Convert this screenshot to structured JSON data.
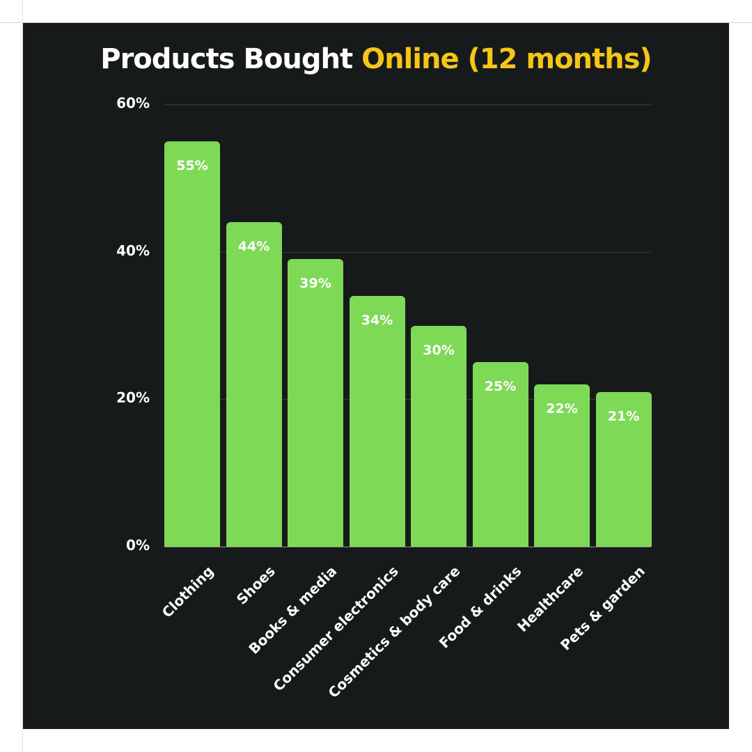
{
  "title": {
    "prefix": "Products Bought ",
    "accent": "Online (12 months)"
  },
  "colors": {
    "background": "#171a1b",
    "bar": "#7ed957",
    "title_accent": "#f5c518",
    "text": "#ffffff"
  },
  "y_axis": {
    "ticks": [
      "0%",
      "20%",
      "40%",
      "60%"
    ]
  },
  "bars": [
    {
      "label": "Clothing",
      "value": 55,
      "display": "55%"
    },
    {
      "label": "Shoes",
      "value": 44,
      "display": "44%"
    },
    {
      "label": "Books & media",
      "value": 39,
      "display": "39%"
    },
    {
      "label": "Consumer electronics",
      "value": 34,
      "display": "34%"
    },
    {
      "label": "Cosmetics & body care",
      "value": 30,
      "display": "30%"
    },
    {
      "label": "Food & drinks",
      "value": 25,
      "display": "25%"
    },
    {
      "label": "Healthcare",
      "value": 22,
      "display": "22%"
    },
    {
      "label": "Pets & garden",
      "value": 21,
      "display": "21%"
    }
  ],
  "chart_data": {
    "type": "bar",
    "title": "Products Bought Online (12 months)",
    "categories": [
      "Clothing",
      "Shoes",
      "Books & media",
      "Consumer electronics",
      "Cosmetics & body care",
      "Food & drinks",
      "Healthcare",
      "Pets & garden"
    ],
    "values": [
      55,
      44,
      39,
      34,
      30,
      25,
      22,
      21
    ],
    "data_labels": [
      "55%",
      "44%",
      "39%",
      "34%",
      "30%",
      "25%",
      "22%",
      "21%"
    ],
    "xlabel": "",
    "ylabel": "",
    "ylim": [
      0,
      60
    ],
    "yticks": [
      "0%",
      "20%",
      "40%",
      "60%"
    ],
    "grid": true,
    "legend": null,
    "x_tick_rotation": -45
  }
}
